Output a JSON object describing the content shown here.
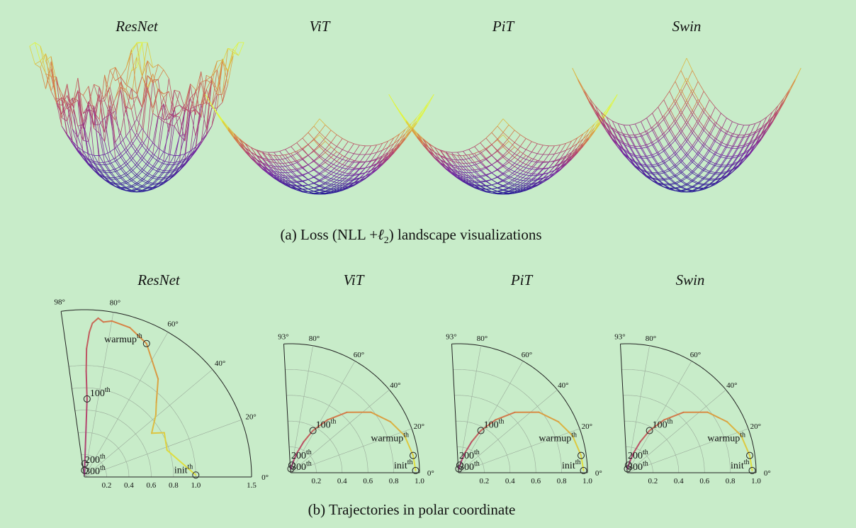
{
  "landscape_section": {
    "caption_prefix": "(a) Loss (NLL +",
    "caption_math": "ℓ",
    "caption_sub": "2",
    "caption_suffix": ") landscape visualizations",
    "panels": [
      {
        "title": "ResNet"
      },
      {
        "title": "ViT"
      },
      {
        "title": "PiT"
      },
      {
        "title": "Swin"
      }
    ]
  },
  "trajectory_section": {
    "caption": "(b) Trajectories in polar coordinate",
    "chart_data": [
      {
        "type": "line",
        "title": "ResNet",
        "coordinate_system": "polar",
        "theta_range_deg": [
          0,
          98
        ],
        "r_range": [
          0,
          1.5
        ],
        "r_ticks": [
          "0.2",
          "0.4",
          "0.6",
          "0.8",
          "1.0",
          "1.5"
        ],
        "theta_ticks": [
          "0°",
          "20°",
          "40°",
          "60°",
          "80°",
          "98°"
        ],
        "annotations": [
          {
            "label": "init",
            "sup": "th",
            "r": 1.0,
            "theta": 1
          },
          {
            "label": "warmup",
            "sup": "th",
            "r": 1.32,
            "theta": 65
          },
          {
            "label": "100",
            "sup": "th",
            "r": 0.7,
            "theta": 88
          },
          {
            "label": "200",
            "sup": "th",
            "r": 0.12,
            "theta": 88
          },
          {
            "label": "300",
            "sup": "th",
            "r": 0.06,
            "theta": 88
          }
        ],
        "trajectory": [
          [
            1.0,
            1
          ],
          [
            0.78,
            18
          ],
          [
            0.82,
            29
          ],
          [
            0.72,
            33
          ],
          [
            0.85,
            41
          ],
          [
            0.93,
            46
          ],
          [
            1.1,
            53
          ],
          [
            1.32,
            65
          ],
          [
            1.4,
            73
          ],
          [
            1.42,
            80
          ],
          [
            1.4,
            83
          ],
          [
            1.43,
            85
          ],
          [
            1.38,
            87
          ],
          [
            1.3,
            88
          ],
          [
            1.15,
            89
          ],
          [
            0.95,
            89
          ],
          [
            0.7,
            88
          ],
          [
            0.45,
            88
          ],
          [
            0.25,
            88
          ],
          [
            0.12,
            88
          ],
          [
            0.06,
            88
          ],
          [
            0.02,
            88
          ]
        ]
      },
      {
        "type": "line",
        "title": "ViT",
        "coordinate_system": "polar",
        "theta_range_deg": [
          0,
          93
        ],
        "r_range": [
          0,
          1.0
        ],
        "r_ticks": [
          "0.2",
          "0.4",
          "0.6",
          "0.8",
          "1.0"
        ],
        "theta_ticks": [
          "0°",
          "20°",
          "40°",
          "60°",
          "80°",
          "93°"
        ],
        "annotations": [
          {
            "label": "init",
            "sup": "th",
            "r": 0.97,
            "theta": 1
          },
          {
            "label": "warmup",
            "sup": "th",
            "r": 0.96,
            "theta": 8
          },
          {
            "label": "100",
            "sup": "th",
            "r": 0.37,
            "theta": 62
          },
          {
            "label": "200",
            "sup": "th",
            "r": 0.06,
            "theta": 80
          },
          {
            "label": "300",
            "sup": "th",
            "r": 0.03,
            "theta": 85
          }
        ],
        "trajectory": [
          [
            0.97,
            1
          ],
          [
            0.96,
            8
          ],
          [
            0.93,
            18
          ],
          [
            0.87,
            27
          ],
          [
            0.78,
            37
          ],
          [
            0.64,
            47
          ],
          [
            0.5,
            55
          ],
          [
            0.37,
            62
          ],
          [
            0.26,
            67
          ],
          [
            0.16,
            72
          ],
          [
            0.09,
            76
          ],
          [
            0.05,
            81
          ],
          [
            0.03,
            85
          ]
        ]
      },
      {
        "type": "line",
        "title": "PiT",
        "coordinate_system": "polar",
        "theta_range_deg": [
          0,
          93
        ],
        "r_range": [
          0,
          1.0
        ],
        "r_ticks": [
          "0.2",
          "0.4",
          "0.6",
          "0.8",
          "1.0"
        ],
        "theta_ticks": [
          "0°",
          "20°",
          "40°",
          "60°",
          "80°",
          "93°"
        ],
        "annotations": [
          {
            "label": "init",
            "sup": "th",
            "r": 0.97,
            "theta": 1
          },
          {
            "label": "warmup",
            "sup": "th",
            "r": 0.96,
            "theta": 8
          },
          {
            "label": "100",
            "sup": "th",
            "r": 0.37,
            "theta": 62
          },
          {
            "label": "200",
            "sup": "th",
            "r": 0.06,
            "theta": 80
          },
          {
            "label": "300",
            "sup": "th",
            "r": 0.03,
            "theta": 85
          }
        ],
        "trajectory": [
          [
            0.97,
            1
          ],
          [
            0.96,
            8
          ],
          [
            0.93,
            18
          ],
          [
            0.87,
            27
          ],
          [
            0.78,
            37
          ],
          [
            0.64,
            47
          ],
          [
            0.5,
            55
          ],
          [
            0.37,
            62
          ],
          [
            0.26,
            67
          ],
          [
            0.16,
            72
          ],
          [
            0.09,
            76
          ],
          [
            0.05,
            81
          ],
          [
            0.03,
            85
          ]
        ]
      },
      {
        "type": "line",
        "title": "Swin",
        "coordinate_system": "polar",
        "theta_range_deg": [
          0,
          93
        ],
        "r_range": [
          0,
          1.0
        ],
        "r_ticks": [
          "0.2",
          "0.4",
          "0.6",
          "0.8",
          "1.0"
        ],
        "theta_ticks": [
          "0°",
          "20°",
          "40°",
          "60°",
          "80°",
          "93°"
        ],
        "annotations": [
          {
            "label": "init",
            "sup": "th",
            "r": 0.97,
            "theta": 1
          },
          {
            "label": "warmup",
            "sup": "th",
            "r": 0.96,
            "theta": 8
          },
          {
            "label": "100",
            "sup": "th",
            "r": 0.37,
            "theta": 62
          },
          {
            "label": "200",
            "sup": "th",
            "r": 0.06,
            "theta": 80
          },
          {
            "label": "300",
            "sup": "th",
            "r": 0.03,
            "theta": 85
          }
        ],
        "trajectory": [
          [
            0.97,
            1
          ],
          [
            0.96,
            8
          ],
          [
            0.93,
            18
          ],
          [
            0.87,
            27
          ],
          [
            0.78,
            37
          ],
          [
            0.64,
            47
          ],
          [
            0.5,
            55
          ],
          [
            0.37,
            62
          ],
          [
            0.26,
            67
          ],
          [
            0.16,
            72
          ],
          [
            0.09,
            76
          ],
          [
            0.05,
            81
          ],
          [
            0.03,
            85
          ]
        ]
      }
    ]
  }
}
